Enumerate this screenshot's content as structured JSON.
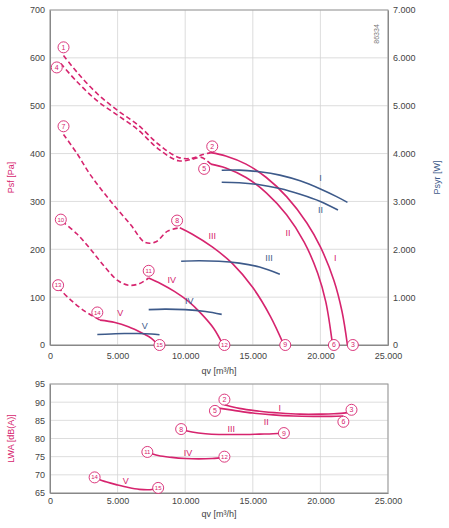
{
  "chart_data": [
    {
      "type": "line",
      "x_label": "qv [m³/h]",
      "y_label": "Psf [Pa]",
      "y2_label": "Psyr [W]",
      "xlim": [
        0,
        25000
      ],
      "xticks": [
        0,
        {
          "value": 5000,
          "label": "5.000"
        },
        {
          "value": 10000,
          "label": "10.000"
        },
        {
          "value": 15000,
          "label": "15.000"
        },
        {
          "value": 20000,
          "label": "20.000"
        },
        {
          "value": 25000,
          "label": "25.000"
        }
      ],
      "ylim": [
        0,
        700
      ],
      "yticks": [
        0,
        100,
        200,
        300,
        400,
        500,
        600,
        700
      ],
      "y2lim": [
        0,
        7000
      ],
      "y2ticks": [
        0,
        {
          "value": 1000,
          "label": "1.000"
        },
        {
          "value": 2000,
          "label": "2.000"
        },
        {
          "value": 3000,
          "label": "3.000"
        },
        {
          "value": 4000,
          "label": "4.000"
        },
        {
          "value": 5000,
          "label": "5.000"
        },
        {
          "value": 6000,
          "label": "6.000"
        },
        {
          "value": 7000,
          "label": "7.000"
        }
      ],
      "grid": true,
      "series": [
        {
          "color": "#d6246e",
          "line_style": "dashed",
          "x": [
            1000,
            2000,
            3500,
            5000,
            6500,
            8000,
            9500,
            10500,
            11300,
            11900
          ],
          "values": [
            605,
            570,
            525,
            490,
            460,
            420,
            392,
            390,
            398,
            402
          ]
        },
        {
          "name": "I",
          "name_at": [
            21100,
            175
          ],
          "color": "#d6246e",
          "line_style": "solid",
          "x": [
            11900,
            13000,
            14500,
            16000,
            17500,
            19000,
            20000,
            21000,
            21600,
            22000
          ],
          "values": [
            402,
            395,
            378,
            350,
            310,
            255,
            205,
            135,
            70,
            0
          ]
        },
        {
          "color": "#d6246e",
          "line_style": "dashed",
          "x": [
            800,
            2000,
            3500,
            5000,
            6500,
            8000,
            9500,
            10500,
            11200,
            11900
          ],
          "values": [
            588,
            550,
            510,
            480,
            450,
            410,
            385,
            388,
            392,
            378
          ]
        },
        {
          "name": "II",
          "name_at": [
            17600,
            228
          ],
          "color": "#d6246e",
          "line_style": "solid",
          "x": [
            11900,
            13000,
            14500,
            16000,
            17500,
            18800,
            19800,
            20400,
            20900
          ],
          "values": [
            378,
            370,
            350,
            318,
            272,
            215,
            150,
            90,
            0
          ]
        },
        {
          "color": "#d6246e",
          "line_style": "dashed",
          "x": [
            1000,
            2000,
            3000,
            4500,
            6000,
            7000,
            7800,
            8700,
            9600
          ],
          "values": [
            440,
            400,
            355,
            300,
            250,
            215,
            215,
            238,
            245
          ]
        },
        {
          "name": "III",
          "name_at": [
            12000,
            222
          ],
          "color": "#d6246e",
          "line_style": "solid",
          "x": [
            9600,
            10500,
            12000,
            13500,
            15000,
            16300,
            17300
          ],
          "values": [
            245,
            232,
            205,
            170,
            120,
            60,
            0
          ]
        },
        {
          "color": "#d6246e",
          "line_style": "dashed",
          "x": [
            900,
            2000,
            3000,
            4000,
            5000,
            5800,
            6600,
            7300
          ],
          "values": [
            258,
            232,
            200,
            165,
            135,
            125,
            128,
            140
          ]
        },
        {
          "name": "IV",
          "name_at": [
            9000,
            130
          ],
          "color": "#d6246e",
          "line_style": "solid",
          "x": [
            7300,
            8200,
            9200,
            10200,
            11200,
            12100,
            12800
          ],
          "values": [
            140,
            128,
            112,
            92,
            65,
            35,
            0
          ]
        },
        {
          "color": "#d6246e",
          "line_style": "dashed",
          "x": [
            600,
            1500,
            2500,
            3700
          ],
          "values": [
            120,
            95,
            72,
            52
          ]
        },
        {
          "name": "V",
          "name_at": [
            5200,
            60
          ],
          "color": "#d6246e",
          "line_style": "solid",
          "x": [
            3700,
            4800,
            5800,
            6800,
            7500,
            8000
          ],
          "values": [
            52,
            47,
            38,
            25,
            14,
            0
          ]
        },
        {
          "name": "I",
          "name_at": [
            20000,
            3420
          ],
          "color": "#3d5a8a",
          "axis": "y2",
          "line_style": "solid",
          "x": [
            12700,
            14000,
            15500,
            17000,
            18500,
            20000,
            21200,
            22000
          ],
          "values": [
            3650,
            3655,
            3620,
            3550,
            3430,
            3260,
            3100,
            2980
          ]
        },
        {
          "name": "II",
          "name_at": [
            20000,
            2760
          ],
          "color": "#3d5a8a",
          "axis": "y2",
          "line_style": "solid",
          "x": [
            12700,
            14000,
            15500,
            17000,
            18500,
            20000,
            21300
          ],
          "values": [
            3400,
            3390,
            3350,
            3270,
            3150,
            3000,
            2820
          ]
        },
        {
          "name": "III",
          "name_at": [
            16200,
            1750
          ],
          "color": "#3d5a8a",
          "axis": "y2",
          "line_style": "solid",
          "x": [
            9700,
            11000,
            12500,
            14000,
            15500,
            17000
          ],
          "values": [
            1750,
            1760,
            1750,
            1710,
            1630,
            1480
          ]
        },
        {
          "name": "IV",
          "name_at": [
            10300,
            850
          ],
          "color": "#3d5a8a",
          "axis": "y2",
          "line_style": "solid",
          "x": [
            7300,
            8500,
            10000,
            11500,
            12700
          ],
          "values": [
            740,
            750,
            740,
            700,
            640
          ]
        },
        {
          "name": "V",
          "name_at": [
            7000,
            330
          ],
          "color": "#3d5a8a",
          "axis": "y2",
          "line_style": "solid",
          "x": [
            3500,
            4500,
            5500,
            6500,
            7500,
            8100
          ],
          "values": [
            220,
            230,
            240,
            240,
            230,
            215
          ]
        }
      ],
      "annotations": [
        {
          "text": "1",
          "x": 1000,
          "y": 622,
          "marker": "circle",
          "color": "#d6246e"
        },
        {
          "text": "4",
          "x": 500,
          "y": 580,
          "marker": "circle",
          "color": "#d6246e"
        },
        {
          "text": "7",
          "x": 1000,
          "y": 457,
          "marker": "circle",
          "color": "#d6246e"
        },
        {
          "text": "10",
          "x": 800,
          "y": 262,
          "marker": "circle",
          "color": "#d6246e"
        },
        {
          "text": "13",
          "x": 600,
          "y": 125,
          "marker": "circle",
          "color": "#d6246e"
        },
        {
          "text": "2",
          "x": 12000,
          "y": 415,
          "marker": "circle",
          "color": "#d6246e"
        },
        {
          "text": "5",
          "x": 11400,
          "y": 368,
          "marker": "circle",
          "color": "#d6246e"
        },
        {
          "text": "8",
          "x": 9400,
          "y": 260,
          "marker": "circle",
          "color": "#d6246e"
        },
        {
          "text": "11",
          "x": 7300,
          "y": 155,
          "marker": "circle",
          "color": "#d6246e"
        },
        {
          "text": "14",
          "x": 3500,
          "y": 68,
          "marker": "circle",
          "color": "#d6246e"
        },
        {
          "text": "3",
          "x": 22400,
          "y": 0,
          "marker": "circle",
          "color": "#d6246e"
        },
        {
          "text": "6",
          "x": 21000,
          "y": 0,
          "marker": "circle",
          "color": "#d6246e"
        },
        {
          "text": "9",
          "x": 17400,
          "y": 0,
          "marker": "circle",
          "color": "#d6246e"
        },
        {
          "text": "12",
          "x": 12900,
          "y": 0,
          "marker": "circle",
          "color": "#d6246e"
        },
        {
          "text": "15",
          "x": 8100,
          "y": 0,
          "marker": "circle",
          "color": "#d6246e"
        },
        {
          "text": "86334",
          "x": 24300,
          "y": 650
        }
      ]
    },
    {
      "type": "line",
      "x_label": "qv [m³/h]",
      "y_label": "LWA [dB(A)]",
      "xlim": [
        0,
        25000
      ],
      "xticks": [
        0,
        {
          "value": 5000,
          "label": "5.000"
        },
        {
          "value": 10000,
          "label": "10.000"
        },
        {
          "value": 15000,
          "label": "15.000"
        },
        {
          "value": 20000,
          "label": "20.000"
        },
        {
          "value": 25000,
          "label": "25.000"
        }
      ],
      "ylim": [
        65,
        95
      ],
      "yticks": [
        65,
        70,
        75,
        80,
        85,
        90,
        95
      ],
      "grid": true,
      "series": [
        {
          "name": "I",
          "name_at": [
            17000,
            87.6
          ],
          "color": "#d6246e",
          "line_style": "solid",
          "x": [
            12900,
            14000,
            15500,
            17000,
            18500,
            20000,
            21000,
            22300
          ],
          "values": [
            89.3,
            88.3,
            87.5,
            87,
            86.7,
            86.7,
            86.8,
            87.2
          ]
        },
        {
          "name": "II",
          "name_at": [
            16000,
            83.7
          ],
          "color": "#d6246e",
          "line_style": "solid",
          "x": [
            12200,
            13500,
            15000,
            16500,
            18000,
            19500,
            20800,
            21700
          ],
          "values": [
            88.5,
            87.8,
            87,
            86.5,
            86.2,
            86.1,
            86.1,
            86.2
          ]
        },
        {
          "name": "III",
          "name_at": [
            13400,
            81.8
          ],
          "color": "#d6246e",
          "line_style": "solid",
          "x": [
            9700,
            10500,
            11500,
            12500,
            13500,
            14500,
            15500,
            16500,
            17300
          ],
          "values": [
            82.5,
            81.8,
            81.3,
            81.1,
            81.1,
            81.1,
            81.2,
            81.3,
            81.5
          ]
        },
        {
          "name": "IV",
          "name_at": [
            10200,
            75.3
          ],
          "color": "#d6246e",
          "line_style": "solid",
          "x": [
            7200,
            8000,
            9000,
            10000,
            11000,
            12000,
            12900
          ],
          "values": [
            76.2,
            75.3,
            74.8,
            74.5,
            74.4,
            74.5,
            74.8
          ]
        },
        {
          "name": "V",
          "name_at": [
            5600,
            67.4
          ],
          "color": "#d6246e",
          "line_style": "solid",
          "x": [
            3300,
            4200,
            5000,
            5800,
            6600,
            7400,
            8000
          ],
          "values": [
            69.2,
            68,
            67.2,
            66.5,
            66,
            65.9,
            66.3
          ]
        }
      ],
      "annotations": [
        {
          "text": "2",
          "x": 12900,
          "y": 90.7,
          "marker": "circle",
          "color": "#d6246e"
        },
        {
          "text": "5",
          "x": 12200,
          "y": 87.6,
          "marker": "circle",
          "color": "#d6246e"
        },
        {
          "text": "3",
          "x": 22300,
          "y": 87.9,
          "marker": "circle",
          "color": "#d6246e"
        },
        {
          "text": "6",
          "x": 21700,
          "y": 84.6,
          "marker": "circle",
          "color": "#d6246e"
        },
        {
          "text": "8",
          "x": 9700,
          "y": 82.6,
          "marker": "circle",
          "color": "#d6246e"
        },
        {
          "text": "9",
          "x": 17300,
          "y": 81.5,
          "marker": "circle",
          "color": "#d6246e"
        },
        {
          "text": "11",
          "x": 7200,
          "y": 76.3,
          "marker": "circle",
          "color": "#d6246e"
        },
        {
          "text": "12",
          "x": 12900,
          "y": 75.0,
          "marker": "circle",
          "color": "#d6246e"
        },
        {
          "text": "14",
          "x": 3300,
          "y": 69.3,
          "marker": "circle",
          "color": "#d6246e"
        },
        {
          "text": "15",
          "x": 8000,
          "y": 66.4,
          "marker": "circle",
          "color": "#d6246e"
        }
      ]
    }
  ]
}
